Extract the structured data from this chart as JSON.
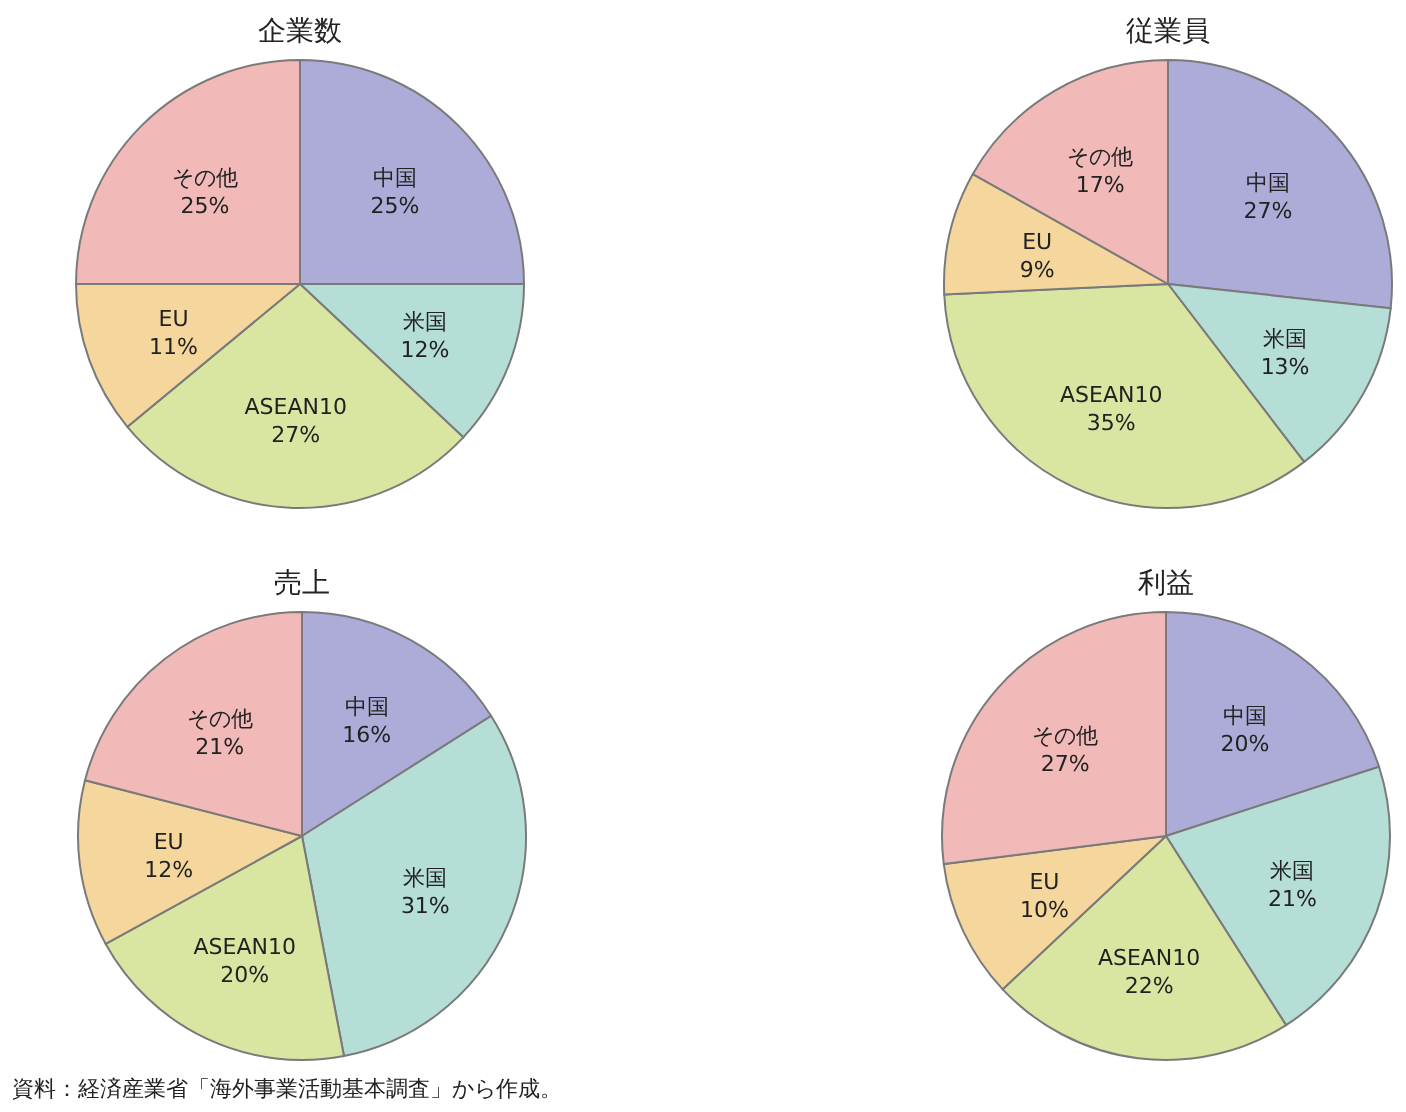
{
  "chart_data": [
    {
      "type": "pie",
      "title": "企業数",
      "categories": [
        "中国",
        "米国",
        "ASEAN10",
        "EU",
        "その他"
      ],
      "values": [
        25,
        12,
        27,
        11,
        25
      ],
      "value_labels": [
        "25%",
        "12%",
        "27%",
        "11%",
        "25%"
      ],
      "colors": [
        "#adacd8",
        "#b5ded6",
        "#d8e6a1",
        "#f5d79d",
        "#f1b9b8"
      ],
      "annotations": [
        "資料：経済産業省「海外事業活動基本調査」から作成。"
      ]
    },
    {
      "type": "pie",
      "title": "従業員",
      "categories": [
        "中国",
        "米国",
        "ASEAN10",
        "EU",
        "その他"
      ],
      "values": [
        27,
        13,
        35,
        9,
        17
      ],
      "value_labels": [
        "27%",
        "13%",
        "35%",
        "9%",
        "17%"
      ],
      "colors": [
        "#adacd8",
        "#b5ded6",
        "#d8e6a1",
        "#f5d79d",
        "#f1b9b8"
      ]
    },
    {
      "type": "pie",
      "title": "売上",
      "categories": [
        "中国",
        "米国",
        "ASEAN10",
        "EU",
        "その他"
      ],
      "values": [
        16,
        31,
        20,
        12,
        21
      ],
      "value_labels": [
        "16%",
        "31%",
        "20%",
        "12%",
        "21%"
      ],
      "colors": [
        "#adacd8",
        "#b5ded6",
        "#d8e6a1",
        "#f5d79d",
        "#f1b9b8"
      ]
    },
    {
      "type": "pie",
      "title": "利益",
      "categories": [
        "中国",
        "米国",
        "ASEAN10",
        "EU",
        "その他"
      ],
      "values": [
        20,
        21,
        22,
        10,
        27
      ],
      "value_labels": [
        "20%",
        "21%",
        "22%",
        "10%",
        "27%"
      ],
      "colors": [
        "#adacd8",
        "#b5ded6",
        "#d8e6a1",
        "#f5d79d",
        "#f1b9b8"
      ]
    }
  ]
}
